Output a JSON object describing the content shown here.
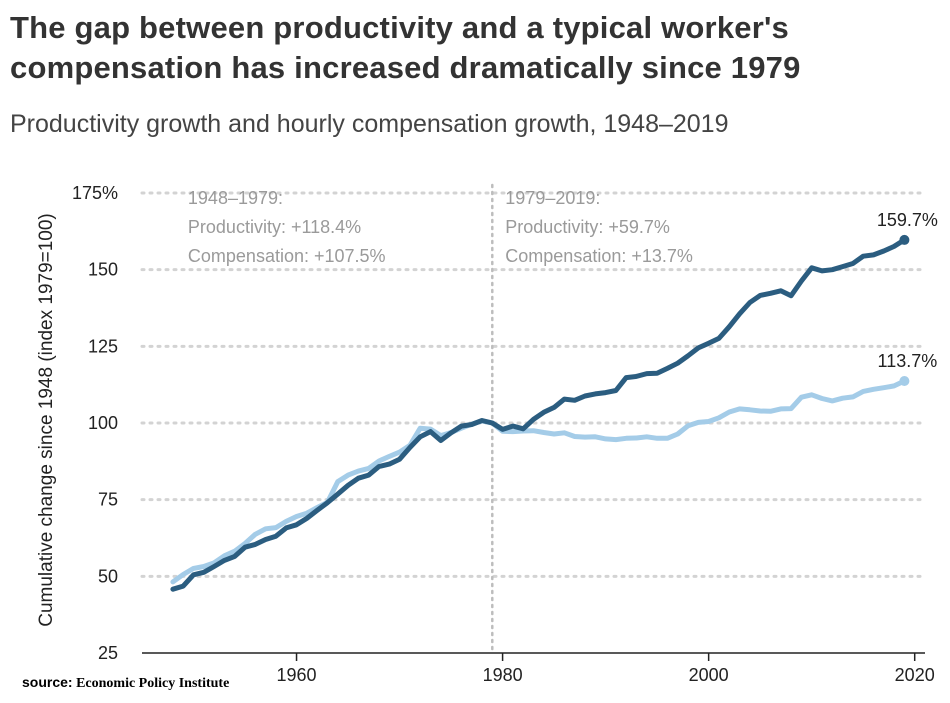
{
  "header": {
    "title": "The gap between productivity and a typical worker's compensation has increased dramatically since 1979",
    "subtitle": "Productivity growth and hourly compensation growth, 1948–2019"
  },
  "source": {
    "label": "source:",
    "name": "Economic Policy Institute"
  },
  "colors": {
    "productivity": "#2b5d80",
    "compensation": "#a4cce8",
    "grid": "#d3d3d3",
    "annotation": "#9a9a9a"
  },
  "chart_data": {
    "type": "line",
    "title": "",
    "xlabel": "",
    "ylabel": "Cumulative change since 1948 (index 1979=100)",
    "xlim": [
      1945,
      2021
    ],
    "ylim": [
      25,
      175
    ],
    "x_ticks": [
      1960,
      1980,
      2000,
      2020
    ],
    "y_ticks": [
      {
        "value": 25,
        "label": "25"
      },
      {
        "value": 50,
        "label": "50"
      },
      {
        "value": 75,
        "label": "75"
      },
      {
        "value": 100,
        "label": "100"
      },
      {
        "value": 125,
        "label": "125"
      },
      {
        "value": 150,
        "label": "150"
      },
      {
        "value": 175,
        "label": "175%"
      }
    ],
    "grid": {
      "horizontal": true,
      "style": "dotted"
    },
    "reference_line": {
      "x": 1979,
      "style": "dotted"
    },
    "annotations": [
      {
        "year_anchor": 1948,
        "lines": [
          "1948–1979:",
          "Productivity: +118.4%",
          "Compensation: +107.5%"
        ]
      },
      {
        "year_anchor": 1979,
        "lines": [
          "1979–2019:",
          "Productivity: +59.7%",
          "Compensation: +13.7%"
        ]
      }
    ],
    "series": [
      {
        "key": "productivity",
        "end_label": "159.7%",
        "x": [
          1948,
          1949,
          1950,
          1951,
          1952,
          1953,
          1954,
          1955,
          1956,
          1957,
          1958,
          1959,
          1960,
          1961,
          1962,
          1963,
          1964,
          1965,
          1966,
          1967,
          1968,
          1969,
          1970,
          1971,
          1972,
          1973,
          1974,
          1975,
          1976,
          1977,
          1978,
          1979,
          1980,
          1981,
          1982,
          1983,
          1984,
          1985,
          1986,
          1987,
          1988,
          1989,
          1990,
          1991,
          1992,
          1993,
          1994,
          1995,
          1996,
          1997,
          1998,
          1999,
          2000,
          2001,
          2002,
          2003,
          2004,
          2005,
          2006,
          2007,
          2008,
          2009,
          2010,
          2011,
          2012,
          2013,
          2014,
          2015,
          2016,
          2017,
          2018,
          2019
        ],
        "values": [
          45.8,
          46.8,
          50.5,
          51.3,
          53.2,
          55.2,
          56.5,
          59.5,
          60.4,
          62.0,
          63.1,
          65.8,
          66.8,
          68.9,
          71.5,
          74.0,
          76.8,
          79.7,
          82.0,
          83.0,
          85.8,
          86.6,
          88.2,
          92.0,
          95.5,
          97.2,
          94.3,
          96.8,
          99.0,
          99.5,
          100.8,
          100.0,
          97.9,
          99.0,
          98.1,
          101.2,
          103.5,
          105.1,
          107.8,
          107.4,
          108.8,
          109.5,
          109.9,
          110.6,
          114.8,
          115.2,
          116.1,
          116.2,
          117.8,
          119.5,
          121.9,
          124.5,
          126.0,
          127.6,
          131.4,
          135.6,
          139.3,
          141.6,
          142.3,
          143.1,
          141.5,
          146.3,
          150.6,
          149.6,
          150.0,
          151.0,
          152.0,
          154.4,
          154.8,
          156.1,
          157.6,
          159.7
        ]
      },
      {
        "key": "compensation",
        "end_label": "113.7%",
        "x": [
          1948,
          1949,
          1950,
          1951,
          1952,
          1953,
          1954,
          1955,
          1956,
          1957,
          1958,
          1959,
          1960,
          1961,
          1962,
          1963,
          1964,
          1965,
          1966,
          1967,
          1968,
          1969,
          1970,
          1971,
          1972,
          1973,
          1974,
          1975,
          1976,
          1977,
          1978,
          1979,
          1980,
          1981,
          1982,
          1983,
          1984,
          1985,
          1986,
          1987,
          1988,
          1989,
          1990,
          1991,
          1992,
          1993,
          1994,
          1995,
          1996,
          1997,
          1998,
          1999,
          2000,
          2001,
          2002,
          2003,
          2004,
          2005,
          2006,
          2007,
          2008,
          2009,
          2010,
          2011,
          2012,
          2013,
          2014,
          2015,
          2016,
          2017,
          2018,
          2019
        ],
        "values": [
          48.2,
          50.6,
          52.6,
          53.2,
          54.4,
          56.7,
          58.2,
          60.7,
          63.7,
          65.5,
          65.9,
          67.9,
          69.5,
          70.6,
          72.4,
          74.1,
          80.9,
          83.0,
          84.3,
          85.2,
          87.6,
          89.1,
          90.5,
          92.7,
          98.3,
          98.0,
          95.9,
          96.9,
          98.3,
          99.6,
          100.7,
          100.0,
          97.3,
          97.2,
          97.4,
          97.5,
          96.9,
          96.4,
          96.8,
          95.6,
          95.4,
          95.5,
          94.8,
          94.6,
          95.0,
          95.1,
          95.5,
          95.0,
          95.0,
          96.4,
          99.1,
          100.2,
          100.5,
          101.7,
          103.6,
          104.6,
          104.3,
          103.9,
          103.8,
          104.6,
          104.7,
          108.4,
          109.2,
          108.0,
          107.2,
          108.1,
          108.5,
          110.3,
          111.0,
          111.5,
          112.1,
          113.7
        ]
      }
    ]
  }
}
